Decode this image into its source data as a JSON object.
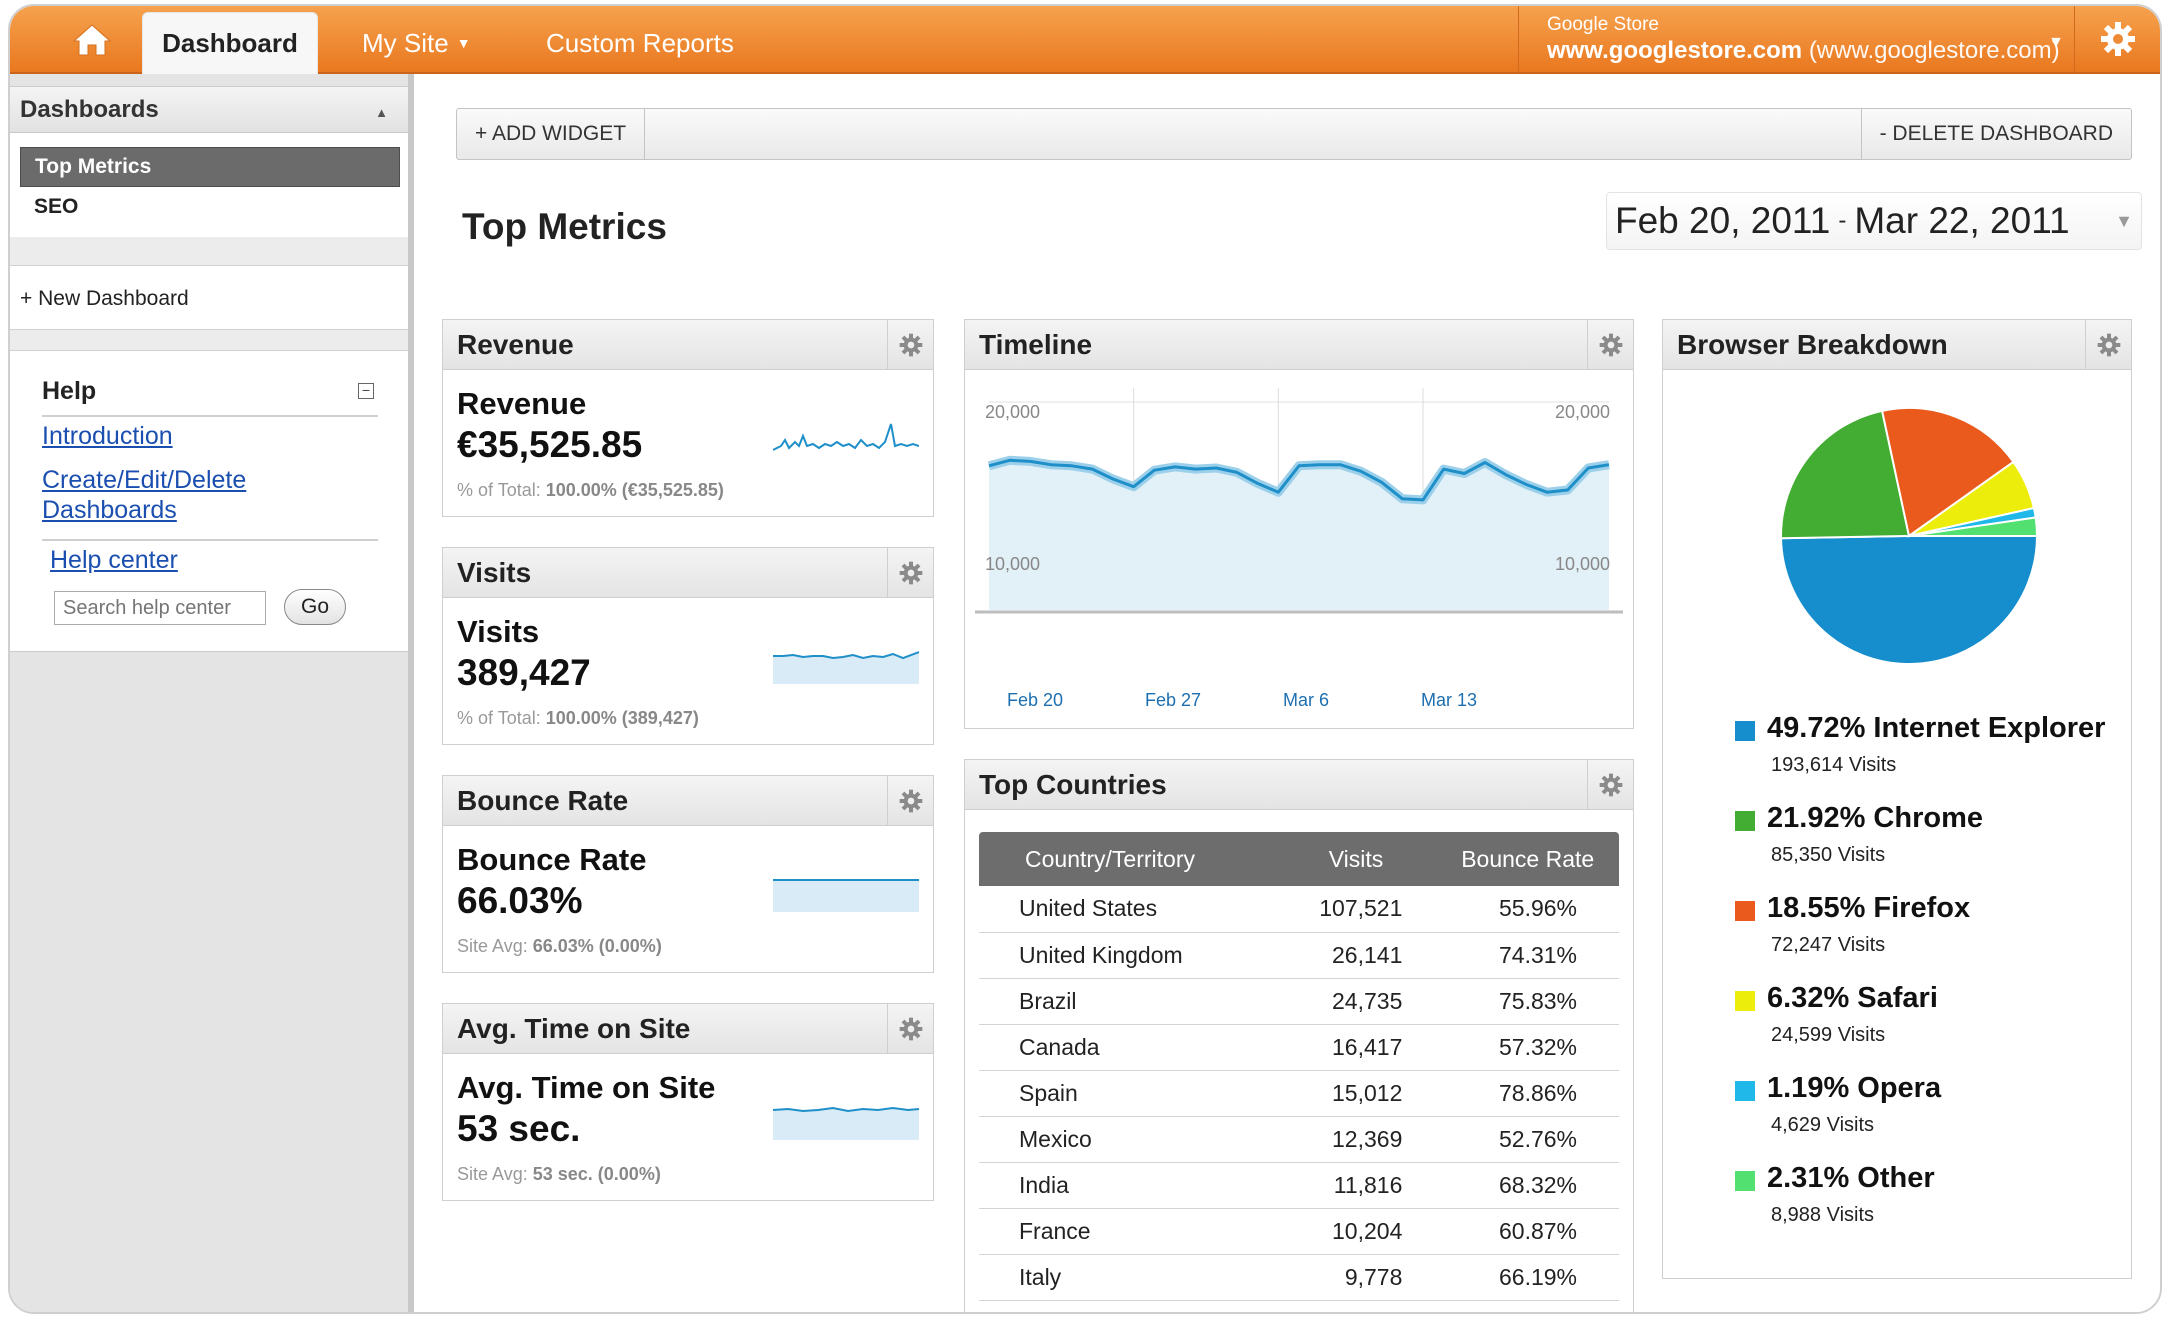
{
  "nav": {
    "tabs": [
      {
        "label": "Dashboard"
      },
      {
        "label": "My Site"
      },
      {
        "label": "Custom Reports"
      }
    ],
    "account": {
      "name": "Google Store",
      "domain": "www.googlestore.com",
      "domain_paren": "(www.googlestore.com)"
    }
  },
  "sidebar": {
    "dashboards_title": "Dashboards",
    "dashboards": [
      {
        "label": "Top Metrics",
        "selected": true
      },
      {
        "label": "SEO",
        "selected": false
      }
    ],
    "new_dashboard": "+ New Dashboard",
    "help": {
      "title": "Help",
      "links": [
        "Introduction",
        "Create/Edit/Delete",
        "Dashboards"
      ],
      "help_center": "Help center",
      "search_placeholder": "Search help center",
      "go_label": "Go"
    }
  },
  "toolbar": {
    "add_widget": "+ ADD WIDGET",
    "delete_dashboard": "- DELETE DASHBOARD"
  },
  "page": {
    "title": "Top Metrics",
    "date_start": "Feb 20, 2011",
    "date_sep": "-",
    "date_end": "Mar 22, 2011"
  },
  "metrics": [
    {
      "title": "Revenue",
      "label": "Revenue",
      "value": "€35,525.85",
      "sub_prefix": "% of Total:",
      "sub_value": "100.00% (€35,525.85)"
    },
    {
      "title": "Visits",
      "label": "Visits",
      "value": "389,427",
      "sub_prefix": "% of Total:",
      "sub_value": "100.00% (389,427)"
    },
    {
      "title": "Bounce Rate",
      "label": "Bounce Rate",
      "value": "66.03%",
      "sub_prefix": "Site Avg:",
      "sub_value": "66.03% (0.00%)"
    },
    {
      "title": "Avg. Time on Site",
      "label": "Avg. Time on Site",
      "value": "53 sec.",
      "sub_prefix": "Site Avg:",
      "sub_value": "53 sec. (0.00%)"
    }
  ],
  "timeline": {
    "title": "Timeline",
    "y_top": "20,000",
    "y_mid": "10,000",
    "x_labels": [
      "Feb 20",
      "Feb 27",
      "Mar 6",
      "Mar 13"
    ]
  },
  "chart_data": {
    "type": "area",
    "title": "Timeline",
    "x": [
      "Feb 20",
      "Feb 21",
      "Feb 22",
      "Feb 23",
      "Feb 24",
      "Feb 25",
      "Feb 26",
      "Feb 27",
      "Feb 28",
      "Mar 1",
      "Mar 2",
      "Mar 3",
      "Mar 4",
      "Mar 5",
      "Mar 6",
      "Mar 7",
      "Mar 8",
      "Mar 9",
      "Mar 10",
      "Mar 11",
      "Mar 12",
      "Mar 13",
      "Mar 14",
      "Mar 15",
      "Mar 16",
      "Mar 17",
      "Mar 18",
      "Mar 19",
      "Mar 20",
      "Mar 21",
      "Mar 22"
    ],
    "series": [
      {
        "values": [
          14200,
          14700,
          14600,
          14300,
          14200,
          13900,
          13000,
          12300,
          13800,
          14100,
          13900,
          14000,
          13600,
          12600,
          11800,
          14200,
          14300,
          14300,
          13700,
          12700,
          11200,
          11100,
          13900,
          13500,
          14500,
          13400,
          12500,
          11800,
          12000,
          14000,
          14300
        ]
      }
    ],
    "ylim": [
      0,
      20000
    ],
    "grid": true
  },
  "countries": {
    "title": "Top Countries",
    "headers": [
      "Country/Territory",
      "Visits",
      "Bounce Rate"
    ],
    "rows": [
      [
        "United States",
        "107,521",
        "55.96%"
      ],
      [
        "United Kingdom",
        "26,141",
        "74.31%"
      ],
      [
        "Brazil",
        "24,735",
        "75.83%"
      ],
      [
        "Canada",
        "16,417",
        "57.32%"
      ],
      [
        "Spain",
        "15,012",
        "78.86%"
      ],
      [
        "Mexico",
        "12,369",
        "52.76%"
      ],
      [
        "India",
        "11,816",
        "68.32%"
      ],
      [
        "France",
        "10,204",
        "60.87%"
      ],
      [
        "Italy",
        "9,778",
        "66.19%"
      ]
    ]
  },
  "browsers": {
    "title": "Browser Breakdown",
    "items": [
      {
        "label": "49.72% Internet Explorer",
        "visits": "193,614 Visits",
        "pct": 49.72,
        "color": "#168dcc"
      },
      {
        "label": "21.92% Chrome",
        "visits": "85,350 Visits",
        "pct": 21.92,
        "color": "#42ad32"
      },
      {
        "label": "18.55% Firefox",
        "visits": "72,247 Visits",
        "pct": 18.55,
        "color": "#ea5a1d"
      },
      {
        "label": "6.32% Safari",
        "visits": "24,599 Visits",
        "pct": 6.32,
        "color": "#eded0c"
      },
      {
        "label": "1.19% Opera",
        "visits": "4,629 Visits",
        "pct": 1.19,
        "color": "#1fb8e8"
      },
      {
        "label": "2.31% Other",
        "visits": "8,988 Visits",
        "pct": 2.31,
        "color": "#52e070"
      }
    ]
  },
  "colors": {
    "nav_orange": "#ee8a33",
    "chart_line": "#1e8fc8",
    "link_blue": "#1a4fb0"
  }
}
